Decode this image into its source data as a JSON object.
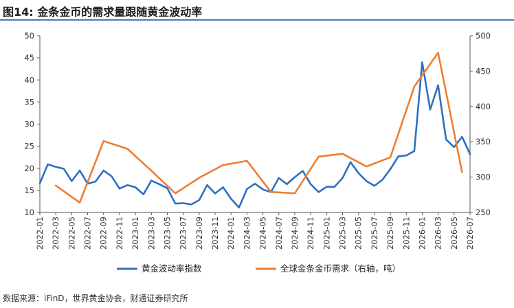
{
  "figure_title": "图14: 金条金币的需求量跟随黄金波动率",
  "source": "数据来源：iFinD，世界黄金协会，财通证券研究所",
  "colors": {
    "blue": "#2e6fc1",
    "orange": "#ee7d31",
    "title_rule": "#4a79b8"
  },
  "chart_data": {
    "type": "line",
    "title": "",
    "xlabel": "",
    "ylabel": "",
    "x_ticks": [
      "2022-01",
      "2022-03",
      "2022-05",
      "2022-07",
      "2022-09",
      "2022-11",
      "2023-01",
      "2023-03",
      "2023-05",
      "2023-07",
      "2023-09",
      "2023-11",
      "2024-01",
      "2024-03",
      "2024-05",
      "2024-07",
      "2024-09",
      "2024-11",
      "2025-01",
      "2025-03",
      "2025-05",
      "2025-07",
      "2025-09",
      "2025-11",
      "2026-01",
      "2026-03",
      "2026-05",
      "2026-07"
    ],
    "x_range": [
      "2022-01",
      "2026-07"
    ],
    "y_left": {
      "min": 10,
      "max": 50,
      "ticks": [
        10,
        15,
        20,
        25,
        30,
        35,
        40,
        45,
        50
      ]
    },
    "y_right": {
      "min": 250,
      "max": 500,
      "ticks": [
        250,
        300,
        350,
        400,
        450,
        500
      ]
    },
    "grid": false,
    "legend": "bottom",
    "series": [
      {
        "name": "黄金波动率指数",
        "axis": "left",
        "color": "#2e6fc1",
        "x": [
          "2022-01",
          "2022-02",
          "2022-03",
          "2022-04",
          "2022-05",
          "2022-06",
          "2022-07",
          "2022-08",
          "2022-09",
          "2022-10",
          "2022-11",
          "2022-12",
          "2023-01",
          "2023-02",
          "2023-03",
          "2023-04",
          "2023-05",
          "2023-06",
          "2023-07",
          "2023-08",
          "2023-09",
          "2023-10",
          "2023-11",
          "2023-12",
          "2024-01",
          "2024-02",
          "2024-03",
          "2024-04",
          "2024-05",
          "2024-06",
          "2024-07",
          "2024-08",
          "2024-09",
          "2024-10",
          "2024-11",
          "2024-12",
          "2025-01",
          "2025-02",
          "2025-03",
          "2025-04",
          "2025-05",
          "2025-06",
          "2025-07",
          "2025-08",
          "2025-09",
          "2025-10",
          "2025-11",
          "2025-12",
          "2026-01",
          "2026-02",
          "2026-03",
          "2026-04",
          "2026-05",
          "2026-06",
          "2026-07"
        ],
        "values": [
          16.6,
          20.9,
          20.3,
          19.9,
          17.1,
          19.5,
          16.5,
          17.0,
          19.5,
          18.2,
          15.4,
          16.2,
          15.7,
          14.1,
          17.2,
          16.4,
          15.5,
          12.0,
          12.1,
          11.8,
          12.8,
          16.2,
          14.3,
          15.7,
          13.1,
          11.1,
          15.3,
          16.5,
          15.2,
          14.6,
          17.8,
          16.4,
          18.0,
          19.4,
          16.4,
          14.6,
          15.8,
          15.8,
          17.8,
          21.4,
          18.9,
          17.1,
          16.0,
          17.4,
          19.8,
          22.7,
          22.9,
          23.9,
          44.0,
          33.3,
          38.8,
          26.5,
          24.8,
          27.1,
          23.2
        ]
      },
      {
        "name": "全球金条金币需求（右轴，吨）",
        "axis": "right",
        "color": "#ee7d31",
        "x": [
          "2022-03",
          "2022-06",
          "2022-09",
          "2022-12",
          "2023-03",
          "2023-06",
          "2023-09",
          "2023-12",
          "2024-03",
          "2024-06",
          "2024-09",
          "2024-12",
          "2025-03",
          "2025-06",
          "2025-09",
          "2025-12",
          "2026-03",
          "2026-06"
        ],
        "values": [
          288,
          264,
          351,
          340,
          309,
          277,
          299,
          317,
          323,
          279,
          277,
          329,
          333,
          315,
          328,
          428,
          476,
          307
        ]
      }
    ]
  }
}
